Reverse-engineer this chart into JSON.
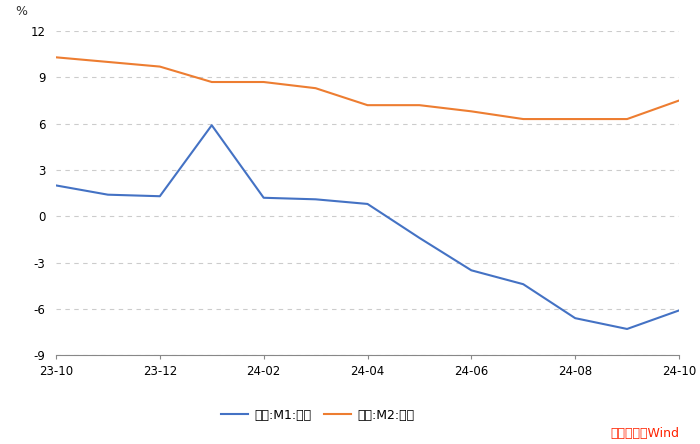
{
  "m1_values": [
    2.0,
    1.4,
    1.3,
    5.9,
    1.2,
    1.1,
    0.8,
    -1.4,
    -3.5,
    -4.4,
    -6.6,
    -7.3,
    -6.1
  ],
  "m2_values": [
    10.3,
    10.0,
    9.7,
    8.7,
    8.7,
    8.3,
    7.2,
    7.2,
    6.8,
    6.3,
    6.3,
    6.3,
    7.5
  ],
  "m1_color": "#4472C4",
  "m2_color": "#ED7D31",
  "ylim": [
    -9,
    12
  ],
  "yticks": [
    -9,
    -6,
    -3,
    0,
    3,
    6,
    9,
    12
  ],
  "xtick_positions": [
    0,
    2,
    4,
    6,
    8,
    10,
    12
  ],
  "xtick_labels": [
    "23-10",
    "23-12",
    "24-02",
    "24-04",
    "24-06",
    "24-08",
    "24-10"
  ],
  "m1_label": "中国:M1:同比",
  "m2_label": "中国:M2:同比",
  "source_text": "数据来源：Wind",
  "source_color": "#FF2200",
  "bg_color": "#FFFFFF",
  "grid_color": "#CCCCCC",
  "line_width": 1.5
}
